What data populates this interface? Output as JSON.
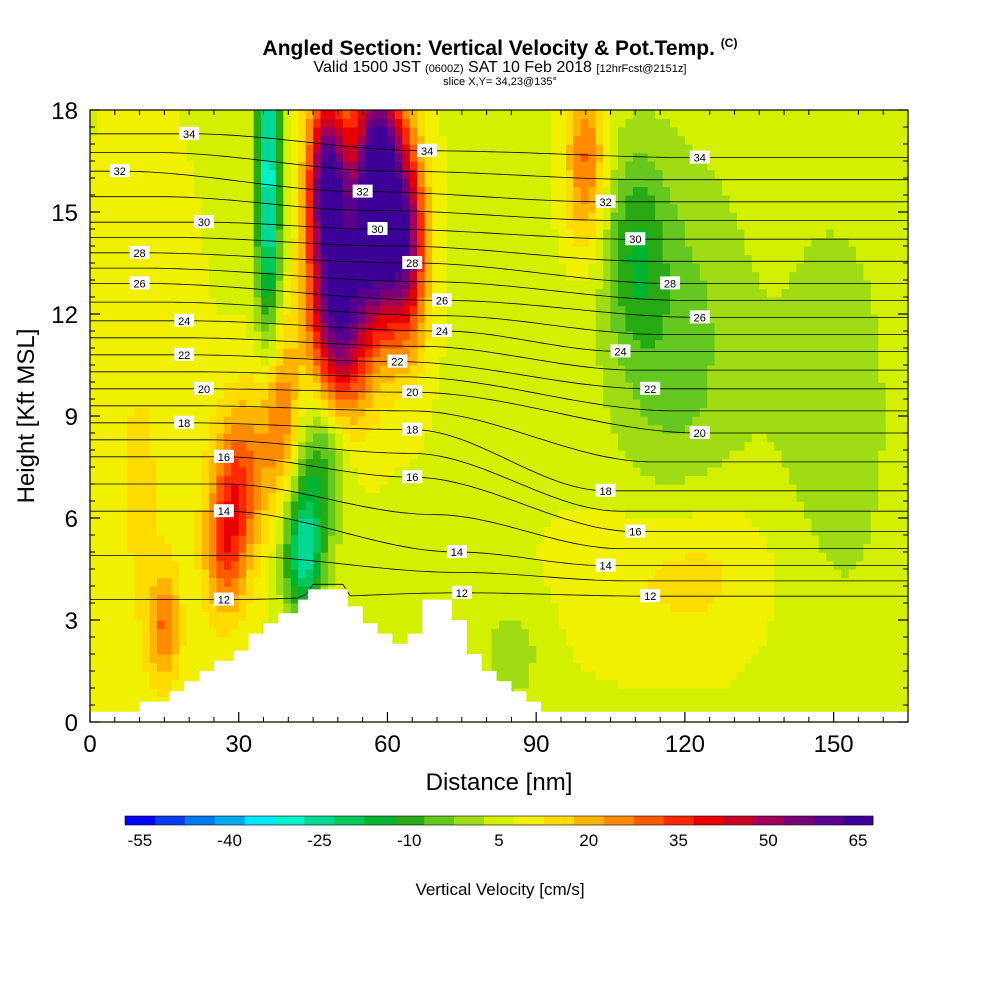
{
  "title": {
    "main": "Angled Section: Vertical Velocity & Pot.Temp.",
    "copyright": "(C)",
    "valid_prefix": "Valid 1500 JST",
    "valid_utc": "(0600Z)",
    "valid_date": "SAT 10 Feb 2018",
    "forecast": "[12hrFcst@2151z]",
    "slice": "slice X,Y= 34,23@135°"
  },
  "chart_data": {
    "type": "heatmap",
    "xlabel": "Distance [nm]",
    "ylabel": "Height [Kft MSL]",
    "xlim": [
      0,
      165
    ],
    "ylim": [
      0,
      18
    ],
    "x_ticks": [
      0,
      30,
      60,
      90,
      120,
      150
    ],
    "y_ticks": [
      0,
      3,
      6,
      9,
      12,
      15,
      18
    ],
    "fill_variable": "Vertical Velocity [cm/s]",
    "contour_variable": "Potential Temperature",
    "colorbar": {
      "label": "Vertical Velocity [cm/s]",
      "tick_labels": [
        "-55",
        "-40",
        "-25",
        "-10",
        "5",
        "20",
        "35",
        "50",
        "65"
      ],
      "min": -62.5,
      "step": 5,
      "colors": [
        "#0000ff",
        "#0a3cf0",
        "#0078f0",
        "#00a8f0",
        "#00e6ff",
        "#00f0c8",
        "#00d896",
        "#00c85a",
        "#00b432",
        "#28aa14",
        "#64c81e",
        "#a0dc14",
        "#d2f000",
        "#f0f000",
        "#ffdc00",
        "#ffb400",
        "#ff8c00",
        "#ff5a00",
        "#ff2800",
        "#e60000",
        "#c80028",
        "#a0005a",
        "#780078",
        "#5a008c",
        "#3c0096"
      ]
    },
    "velocity_features": [
      {
        "x": 58,
        "y": 15.5,
        "sx": 5,
        "sy": 3.5,
        "v": 75
      },
      {
        "x": 50,
        "y": 12,
        "sx": 6,
        "sy": 3,
        "v": 55
      },
      {
        "x": 48,
        "y": 16,
        "sx": 4,
        "sy": 2.5,
        "v": 55
      },
      {
        "x": 64,
        "y": 14,
        "sx": 4,
        "sy": 3,
        "v": 40
      },
      {
        "x": 36,
        "y": 16,
        "sx": 2.5,
        "sy": 5,
        "v": -38
      },
      {
        "x": 38,
        "y": 9,
        "sx": 4,
        "sy": 2.5,
        "v": 22
      },
      {
        "x": 30,
        "y": 7,
        "sx": 5,
        "sy": 2.5,
        "v": 25
      },
      {
        "x": 27,
        "y": 5,
        "sx": 4,
        "sy": 2,
        "v": 20
      },
      {
        "x": 43,
        "y": 5,
        "sx": 4,
        "sy": 2,
        "v": -32
      },
      {
        "x": 47,
        "y": 8,
        "sx": 5,
        "sy": 2.5,
        "v": -20
      },
      {
        "x": 15,
        "y": 2.8,
        "sx": 3,
        "sy": 1.5,
        "v": 18
      },
      {
        "x": 100,
        "y": 16.5,
        "sx": 4,
        "sy": 2.5,
        "v": 22
      },
      {
        "x": 118,
        "y": 11,
        "sx": 14,
        "sy": 6,
        "v": -12
      },
      {
        "x": 110,
        "y": 14,
        "sx": 6,
        "sy": 3,
        "v": -14
      },
      {
        "x": 120,
        "y": 4.5,
        "sx": 18,
        "sy": 2.5,
        "v": 10
      },
      {
        "x": 85,
        "y": 2,
        "sx": 6,
        "sy": 1.5,
        "v": -8
      },
      {
        "x": 10,
        "y": 7,
        "sx": 10,
        "sy": 8,
        "v": 6
      },
      {
        "x": 150,
        "y": 9,
        "sx": 15,
        "sy": 8,
        "v": -7
      }
    ],
    "background_velocity": 2,
    "isentrope_labels": [
      {
        "x": 20,
        "y": 17.3,
        "text": "34"
      },
      {
        "x": 68,
        "y": 16.8,
        "text": "34"
      },
      {
        "x": 123,
        "y": 16.6,
        "text": "34"
      },
      {
        "x": 6,
        "y": 16.2,
        "text": "32"
      },
      {
        "x": 55,
        "y": 15.6,
        "text": "32"
      },
      {
        "x": 104,
        "y": 15.3,
        "text": "32"
      },
      {
        "x": 23,
        "y": 14.7,
        "text": "30"
      },
      {
        "x": 58,
        "y": 14.5,
        "text": "30"
      },
      {
        "x": 110,
        "y": 14.2,
        "text": "30"
      },
      {
        "x": 10,
        "y": 13.8,
        "text": "28"
      },
      {
        "x": 65,
        "y": 13.5,
        "text": "28"
      },
      {
        "x": 117,
        "y": 12.9,
        "text": "28"
      },
      {
        "x": 10,
        "y": 12.9,
        "text": "26"
      },
      {
        "x": 71,
        "y": 12.4,
        "text": "26"
      },
      {
        "x": 123,
        "y": 11.9,
        "text": "26"
      },
      {
        "x": 19,
        "y": 11.8,
        "text": "24"
      },
      {
        "x": 71,
        "y": 11.5,
        "text": "24"
      },
      {
        "x": 107,
        "y": 10.9,
        "text": "24"
      },
      {
        "x": 19,
        "y": 10.8,
        "text": "22"
      },
      {
        "x": 62,
        "y": 10.6,
        "text": "22"
      },
      {
        "x": 113,
        "y": 9.8,
        "text": "22"
      },
      {
        "x": 23,
        "y": 9.8,
        "text": "20"
      },
      {
        "x": 65,
        "y": 9.7,
        "text": "20"
      },
      {
        "x": 123,
        "y": 8.5,
        "text": "20"
      },
      {
        "x": 19,
        "y": 8.8,
        "text": "18"
      },
      {
        "x": 65,
        "y": 8.6,
        "text": "18"
      },
      {
        "x": 104,
        "y": 6.8,
        "text": "18"
      },
      {
        "x": 27,
        "y": 7.8,
        "text": "16"
      },
      {
        "x": 65,
        "y": 7.2,
        "text": "16"
      },
      {
        "x": 110,
        "y": 5.6,
        "text": "16"
      },
      {
        "x": 27,
        "y": 6.2,
        "text": "14"
      },
      {
        "x": 74,
        "y": 5,
        "text": "14"
      },
      {
        "x": 104,
        "y": 4.6,
        "text": "14"
      },
      {
        "x": 27,
        "y": 3.6,
        "text": "12"
      },
      {
        "x": 75,
        "y": 3.8,
        "text": "12"
      },
      {
        "x": 113,
        "y": 3.7,
        "text": "12"
      }
    ],
    "terrain": [
      [
        0,
        0.3
      ],
      [
        10,
        0.3
      ],
      [
        10,
        0.6
      ],
      [
        16,
        0.6
      ],
      [
        16,
        0.9
      ],
      [
        19,
        0.9
      ],
      [
        19,
        1.2
      ],
      [
        22,
        1.2
      ],
      [
        22,
        1.5
      ],
      [
        25,
        1.5
      ],
      [
        25,
        1.8
      ],
      [
        29,
        1.8
      ],
      [
        29,
        2.1
      ],
      [
        32,
        2.1
      ],
      [
        32,
        2.6
      ],
      [
        35,
        2.6
      ],
      [
        35,
        2.9
      ],
      [
        38,
        2.9
      ],
      [
        38,
        3.2
      ],
      [
        42,
        3.2
      ],
      [
        42,
        3.6
      ],
      [
        44,
        3.6
      ],
      [
        44,
        3.9
      ],
      [
        52,
        3.9
      ],
      [
        52,
        3.4
      ],
      [
        55,
        3.4
      ],
      [
        55,
        2.9
      ],
      [
        58,
        2.9
      ],
      [
        58,
        2.6
      ],
      [
        61,
        2.6
      ],
      [
        61,
        2.3
      ],
      [
        64,
        2.3
      ],
      [
        64,
        2.6
      ],
      [
        67,
        2.6
      ],
      [
        67,
        3.6
      ],
      [
        73,
        3.6
      ],
      [
        73,
        3.0
      ],
      [
        76,
        3.0
      ],
      [
        76,
        2.0
      ],
      [
        79,
        2.0
      ],
      [
        79,
        1.5
      ],
      [
        82,
        1.5
      ],
      [
        82,
        1.2
      ],
      [
        85,
        1.2
      ],
      [
        85,
        0.9
      ],
      [
        88,
        0.9
      ],
      [
        88,
        0.6
      ],
      [
        91,
        0.6
      ],
      [
        91,
        0.3
      ],
      [
        165,
        0.3
      ]
    ]
  }
}
